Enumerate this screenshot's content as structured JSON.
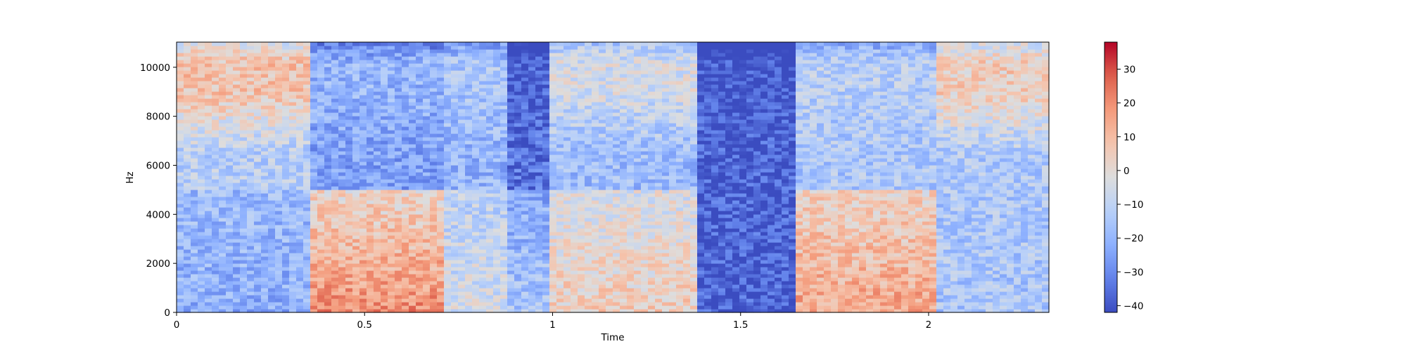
{
  "chart_data": {
    "type": "heatmap",
    "title": "",
    "xlabel": "Time",
    "ylabel": "Hz",
    "xlim": [
      0,
      2.32
    ],
    "ylim": [
      0,
      11025
    ],
    "x_ticks": [
      {
        "value": 0,
        "label": "0"
      },
      {
        "value": 0.5,
        "label": "0.5"
      },
      {
        "value": 1,
        "label": "1"
      },
      {
        "value": 1.5,
        "label": "1.5"
      },
      {
        "value": 2,
        "label": "2"
      }
    ],
    "y_ticks": [
      {
        "value": 0,
        "label": "0"
      },
      {
        "value": 2000,
        "label": "2000"
      },
      {
        "value": 4000,
        "label": "4000"
      },
      {
        "value": 6000,
        "label": "6000"
      },
      {
        "value": 8000,
        "label": "8000"
      },
      {
        "value": 10000,
        "label": "10000"
      }
    ],
    "colorbar": {
      "colormap": "coolwarm",
      "range": [
        -42,
        38
      ],
      "ticks": [
        {
          "value": 30,
          "label": "30"
        },
        {
          "value": 20,
          "label": "20"
        },
        {
          "value": 10,
          "label": "10"
        },
        {
          "value": 0,
          "label": "0"
        },
        {
          "value": -10,
          "label": "−10"
        },
        {
          "value": -20,
          "label": "−20"
        },
        {
          "value": -30,
          "label": "−30"
        },
        {
          "value": -40,
          "label": "−40"
        }
      ]
    },
    "grid": false,
    "segments": [
      {
        "t0": 0.0,
        "t1": 0.36,
        "level_db": -12,
        "high_band_db": 8,
        "low_band_db": -22
      },
      {
        "t0": 0.36,
        "t1": 0.72,
        "level_db": -25,
        "high_band_db": -20,
        "low_band_db": 20
      },
      {
        "t0": 0.72,
        "t1": 0.88,
        "level_db": -20,
        "high_band_db": -15,
        "low_band_db": -5
      },
      {
        "t0": 0.88,
        "t1": 1.0,
        "level_db": -35,
        "high_band_db": -38,
        "low_band_db": -15
      },
      {
        "t0": 1.0,
        "t1": 1.38,
        "level_db": -18,
        "high_band_db": -5,
        "low_band_db": 5
      },
      {
        "t0": 1.38,
        "t1": 1.65,
        "level_db": -38,
        "high_band_db": -40,
        "low_band_db": -38
      },
      {
        "t0": 1.65,
        "t1": 2.02,
        "level_db": -15,
        "high_band_db": -12,
        "low_band_db": 15
      },
      {
        "t0": 2.02,
        "t1": 2.32,
        "level_db": -14,
        "high_band_db": 5,
        "low_band_db": -15
      }
    ]
  }
}
